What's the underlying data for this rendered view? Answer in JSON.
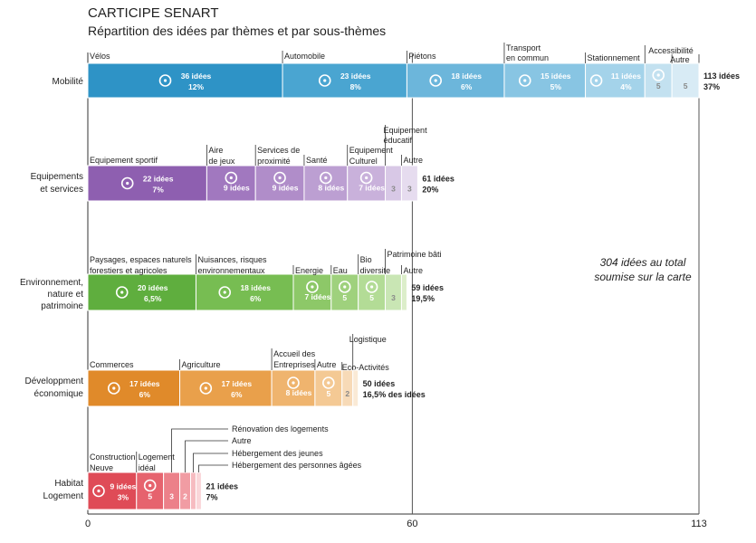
{
  "title": "CARTICIPE SENART",
  "subtitle": "Répartition des idées par thèmes et par sous-thèmes",
  "total_note": [
    "304 idées au total",
    "soumise sur la carte"
  ],
  "chart_data": {
    "type": "bar",
    "orientation": "horizontal",
    "stacked": true,
    "x_range": [
      0,
      113
    ],
    "x_ticks": [
      "0",
      "60",
      "113"
    ],
    "categories": [
      {
        "label": [
          "Mobilité"
        ],
        "total_label": [
          "113 idées",
          "37%"
        ],
        "segments": [
          {
            "name": "Vélos",
            "value": 36,
            "text": "36 idées",
            "pct": "12%",
            "color": "#2e93c6",
            "icon": "bicycle-icon"
          },
          {
            "name": "Automobile",
            "value": 23,
            "text": "23 idées",
            "pct": "8%",
            "color": "#4aa5d1",
            "icon": "car-icon"
          },
          {
            "name": "Piétons",
            "value": 18,
            "text": "18 idées",
            "pct": "6%",
            "color": "#6cb6db",
            "icon": "pedestrian-icon"
          },
          {
            "name": "Transport en commun",
            "value": 15,
            "text": "15 idées",
            "pct": "5%",
            "color": "#88c5e3",
            "icon": "bus-icon"
          },
          {
            "name": "Stationnement",
            "value": 11,
            "text": "11 idées",
            "pct": "4%",
            "color": "#a4d3ea",
            "icon": "parking-icon"
          },
          {
            "name": "Accessibilité",
            "value": 5,
            "text": "5",
            "color": "#c3e1f0",
            "icon": "wheelchair-icon"
          },
          {
            "name": "Autre",
            "value": 5,
            "text": "5",
            "color": "#d8ebf5"
          }
        ]
      },
      {
        "label": [
          "Equipements",
          "et services"
        ],
        "total_label": [
          "61 idées",
          "20%"
        ],
        "segments": [
          {
            "name": "Equipement sportif",
            "value": 22,
            "text": "22 idées",
            "pct": "7%",
            "color": "#8e5fb0",
            "icon": "sport-icon"
          },
          {
            "name": "Aire de jeux",
            "value": 9,
            "text": "9 idées",
            "color": "#a178bf",
            "icon": "playground-icon"
          },
          {
            "name": "Services de proximité",
            "value": 9,
            "text": "9 idées",
            "color": "#b08dc9",
            "icon": "services-icon"
          },
          {
            "name": "Santé",
            "value": 8,
            "text": "8 idées",
            "color": "#bc9fd2",
            "icon": "health-cross-icon"
          },
          {
            "name": "Equipement Culturel",
            "value": 7,
            "text": "7 idées",
            "color": "#c9b1db",
            "icon": "culture-icon"
          },
          {
            "name": "Equipement éducatif",
            "value": 3,
            "text": "3",
            "color": "#d8c8e6",
            "icon": "graduation-cap-icon"
          },
          {
            "name": "Autre",
            "value": 3,
            "text": "3",
            "color": "#e6dcef"
          }
        ]
      },
      {
        "label": [
          "Environnement,",
          "nature et",
          "patrimoine"
        ],
        "total_label": [
          "59 idées",
          "19,5%"
        ],
        "segments": [
          {
            "name": "Paysages, espaces naturels forestiers et agricoles",
            "value": 20,
            "text": "20 idées",
            "pct": "6,5%",
            "color": "#5fae3e",
            "icon": "plant-icon"
          },
          {
            "name": "Nuisances, risques environnementaux",
            "value": 18,
            "text": "18 idées",
            "pct": "6%",
            "color": "#77bd52",
            "icon": "warning-icon"
          },
          {
            "name": "Energie",
            "value": 7,
            "text": "7 idées",
            "color": "#8dc868",
            "icon": "wind-turbine-icon"
          },
          {
            "name": "Eau",
            "value": 5,
            "text": "5",
            "color": "#9fd17d",
            "icon": "water-drop-icon"
          },
          {
            "name": "Bio diversite",
            "value": 5,
            "text": "5",
            "color": "#b3dc96",
            "icon": "biodiversity-icon"
          },
          {
            "name": "Patrimoine bâti",
            "value": 3,
            "text": "3",
            "color": "#c9e6b4",
            "icon": "monument-icon"
          },
          {
            "name": "Autre",
            "value": 1,
            "text": "",
            "color": "#dceeca"
          }
        ]
      },
      {
        "label": [
          "Développment",
          "économique"
        ],
        "total_label": [
          "50 idées",
          "16,5% des idées"
        ],
        "segments": [
          {
            "name": "Commerces",
            "value": 17,
            "text": "17 idées",
            "pct": "6%",
            "color": "#e08a2a",
            "icon": "basket-icon"
          },
          {
            "name": "Agriculture",
            "value": 17,
            "text": "17 idées",
            "pct": "6%",
            "color": "#e9a04b",
            "icon": "wheat-icon"
          },
          {
            "name": "Accueil des Entreprises",
            "value": 8,
            "text": "8 idées",
            "color": "#efb46e",
            "icon": "factory-icon"
          },
          {
            "name": "Autre",
            "value": 5,
            "text": "5",
            "color": "#f4c994",
            "icon": "bubble-icon"
          },
          {
            "name": "Eco-Activités",
            "value": 2,
            "text": "2",
            "color": "#f7dab7",
            "icon": "recycle-icon"
          },
          {
            "name": "Logistique",
            "value": 1,
            "text": "",
            "color": "#faead6",
            "icon": "truck-icon"
          }
        ]
      },
      {
        "label": [
          "Habitat",
          "Logement"
        ],
        "total_label": [
          "21 idées",
          "7%"
        ],
        "segments": [
          {
            "name": "Construction Neuve",
            "value": 9,
            "text": "9 idées",
            "pct": "3%",
            "color": "#df4b57",
            "icon": "crane-icon"
          },
          {
            "name": "Logement idéal",
            "value": 5,
            "text": "5",
            "color": "#e6636e",
            "icon": "ideal-home-icon"
          },
          {
            "name": "Rénovation des logements",
            "value": 3,
            "text": "3",
            "color": "#ec8089",
            "icon": "renovation-icon"
          },
          {
            "name": "Autre",
            "value": 2,
            "text": "2",
            "color": "#f19ca3"
          },
          {
            "name": "Hébergement des jeunes",
            "value": 1,
            "text": "",
            "color": "#f6bbc0",
            "icon": "youth-housing-icon"
          },
          {
            "name": "Hébergement des personnes âgées",
            "value": 1,
            "text": "",
            "color": "#fad6d9",
            "icon": "elderly-housing-icon"
          }
        ]
      }
    ]
  }
}
